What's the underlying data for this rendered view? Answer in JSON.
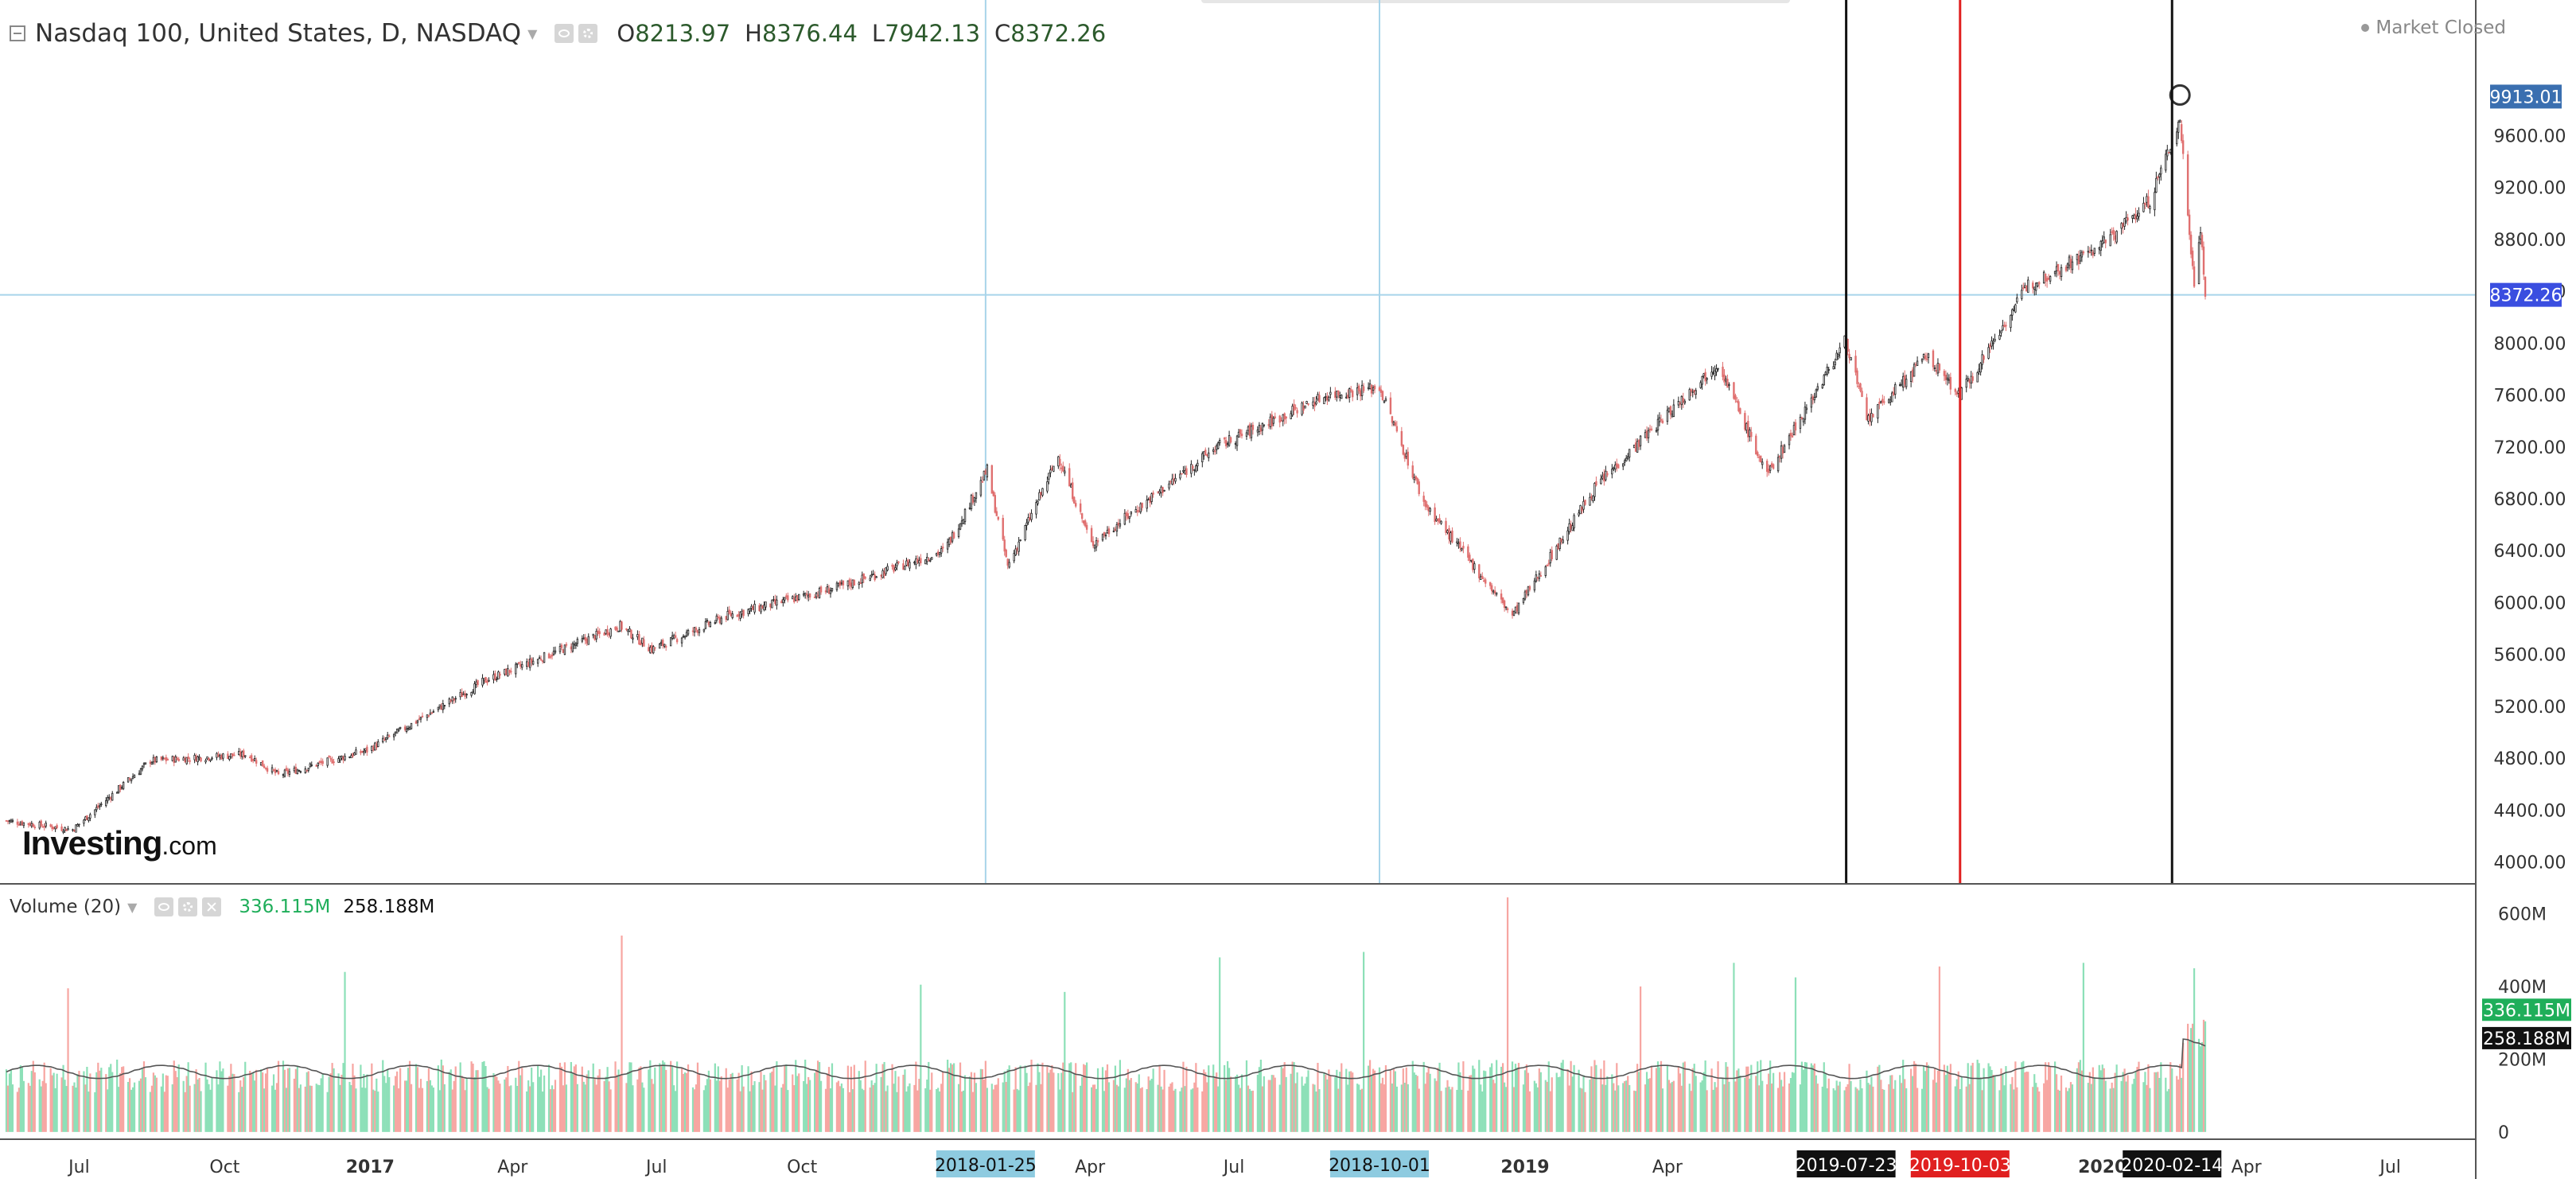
{
  "header": {
    "symbol_title": "Nasdaq 100, United States, D, NASDAQ",
    "open_label": "O",
    "open_value": "8213.97",
    "high_label": "H",
    "high_value": "8376.44",
    "low_label": "L",
    "low_value": "7942.13",
    "close_label": "C",
    "close_value": "8372.26",
    "market_status": "Market Closed"
  },
  "volume_panel": {
    "title": "Volume (20)",
    "volume_value": "336.115M",
    "volume_ma_value": "258.188M"
  },
  "logo": {
    "brand": "Investing",
    "tld": ".com"
  },
  "colors": {
    "up": "#26a69a",
    "down": "#ef5350",
    "vol_up": "#8de0b8",
    "vol_down": "#f7a6a2",
    "crosshair": "#a8d4ea",
    "price_tag": "#3a6fb0",
    "current_tag": "#3a4ee0"
  },
  "chart_data": [
    {
      "type": "candlestick",
      "title": "Nasdaq 100, United States, D, NASDAQ",
      "y_axis_ticks": [
        4000,
        4400,
        4800,
        5200,
        5600,
        6000,
        6400,
        6800,
        7200,
        7600,
        8000,
        8400,
        8800,
        9200,
        9600
      ],
      "y_axis_labels": [
        "4000.00",
        "4400.00",
        "4800.00",
        "5200.00",
        "5600.00",
        "6000.00",
        "6400.00",
        "6800.00",
        "7200.00",
        "7600.00",
        "8000.00",
        "8400.00",
        "8800.00",
        "9200.00",
        "9600.00"
      ],
      "ylim": [
        3850,
        10400
      ],
      "x_axis_labels": [
        "Jul",
        "Oct",
        "2017",
        "Apr",
        "Jul",
        "Oct",
        "Apr",
        "Jul",
        "2019",
        "Apr",
        "2020",
        "Apr",
        "Jul"
      ],
      "x_axis_label_dates": [
        "2016-07-01",
        "2016-10-01",
        "2017-01-01",
        "2017-04-01",
        "2017-07-01",
        "2017-10-01",
        "2018-04-01",
        "2018-07-01",
        "2019-01-01",
        "2019-04-01",
        "2020-01-01",
        "2020-04-01",
        "2020-07-01"
      ],
      "date_range": [
        "2016-05-15",
        "2020-03-06"
      ],
      "approx_closes": [
        [
          "2016-05-15",
          4320
        ],
        [
          "2016-06-27",
          4250
        ],
        [
          "2016-08-15",
          4780
        ],
        [
          "2016-10-15",
          4830
        ],
        [
          "2016-11-04",
          4670
        ],
        [
          "2016-12-30",
          4860
        ],
        [
          "2017-03-15",
          5400
        ],
        [
          "2017-06-08",
          5820
        ],
        [
          "2017-06-28",
          5640
        ],
        [
          "2017-08-15",
          5900
        ],
        [
          "2017-10-25",
          6120
        ],
        [
          "2017-12-30",
          6400
        ],
        [
          "2018-01-26",
          7020
        ],
        [
          "2018-02-08",
          6280
        ],
        [
          "2018-03-12",
          7130
        ],
        [
          "2018-04-02",
          6450
        ],
        [
          "2018-06-20",
          7200
        ],
        [
          "2018-08-29",
          7600
        ],
        [
          "2018-10-01",
          7660
        ],
        [
          "2018-10-29",
          6770
        ],
        [
          "2018-12-24",
          5900
        ],
        [
          "2019-02-15",
          6900
        ],
        [
          "2019-05-03",
          7850
        ],
        [
          "2019-06-03",
          6980
        ],
        [
          "2019-07-23",
          8030
        ],
        [
          "2019-08-05",
          7400
        ],
        [
          "2019-09-12",
          7900
        ],
        [
          "2019-10-03",
          7600
        ],
        [
          "2019-11-15",
          8450
        ],
        [
          "2019-12-31",
          8750
        ],
        [
          "2020-01-31",
          9100
        ],
        [
          "2020-02-19",
          9718
        ],
        [
          "2020-02-28",
          8450
        ],
        [
          "2020-03-03",
          8900
        ],
        [
          "2020-03-06",
          8372.26
        ]
      ],
      "price_tags": [
        "9913.01",
        "8372.26"
      ],
      "marker_high": 9913.01,
      "horizontal_crosshair_price": 8372.26,
      "crosshair_dates": [
        "2018-01-25",
        "2018-10-01"
      ],
      "date_tags": [
        "2018-01-25",
        "2018-10-01",
        "2019-07-23",
        "2019-10-03",
        "2020-02-14"
      ],
      "vertical_lines": [
        {
          "date": "2019-07-23",
          "color": "#111111"
        },
        {
          "date": "2019-10-03",
          "color": "#e02020"
        },
        {
          "date": "2020-02-14",
          "color": "#111111"
        }
      ]
    },
    {
      "type": "bar",
      "title": "Volume (20)",
      "y_axis_ticks": [
        0,
        200,
        400,
        600
      ],
      "y_axis_labels": [
        "0",
        "200M",
        "400M",
        "600M"
      ],
      "ylim": [
        -20,
        680
      ],
      "series": [
        {
          "name": "Volume",
          "baseline_millions": 145
        },
        {
          "name": "MA (20)",
          "baseline_millions": 165
        }
      ],
      "spikes": [
        [
          "2016-06-24",
          395,
          "down"
        ],
        [
          "2016-12-16",
          440,
          "up"
        ],
        [
          "2017-06-09",
          540,
          "down"
        ],
        [
          "2017-12-15",
          405,
          "up"
        ],
        [
          "2018-03-16",
          385,
          "up"
        ],
        [
          "2018-06-22",
          480,
          "up"
        ],
        [
          "2018-09-21",
          495,
          "up"
        ],
        [
          "2018-12-21",
          645,
          "down"
        ],
        [
          "2019-03-15",
          400,
          "down"
        ],
        [
          "2019-05-13",
          465,
          "up"
        ],
        [
          "2019-06-21",
          425,
          "up"
        ],
        [
          "2019-09-20",
          455,
          "down"
        ],
        [
          "2019-12-20",
          465,
          "up"
        ],
        [
          "2020-02-28",
          450,
          "up"
        ]
      ],
      "last_values": [
        "336.115M",
        "258.188M"
      ]
    }
  ]
}
